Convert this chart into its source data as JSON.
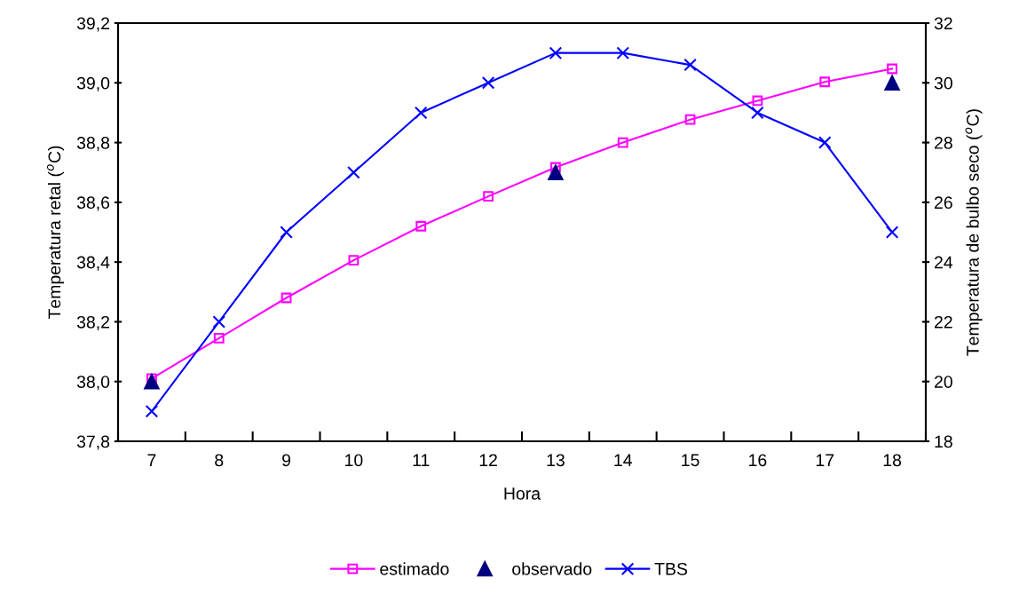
{
  "chart_data": {
    "type": "line",
    "xlabel": "Hora",
    "ylabel": "Temperatura retal ($^{o}$C)",
    "y2label": "Temperatura de bulbo seco ($^{o}$C)",
    "categories": [
      "7",
      "8",
      "9",
      "10",
      "11",
      "12",
      "13",
      "14",
      "15",
      "16",
      "17",
      "18"
    ],
    "series": [
      {
        "name": "estimado",
        "color": "#ff00ff",
        "marker": "square",
        "line_style": "solid",
        "values": [
          38.01,
          38.145,
          38.28,
          38.406,
          38.52,
          38.62,
          38.717,
          38.8,
          38.877,
          38.94,
          39.003,
          39.047
        ]
      },
      {
        "name": "observado",
        "type": "scatter",
        "color": "#000080",
        "marker": "triangle",
        "values": [
          38.0,
          null,
          null,
          null,
          null,
          null,
          38.7,
          null,
          null,
          null,
          null,
          39.0
        ]
      },
      {
        "name": "TBS",
        "color": "#0000ff",
        "marker": "cross",
        "line_style": "solid",
        "axis": "y2",
        "values": [
          19,
          22,
          25,
          27,
          29,
          30,
          31,
          31,
          30.6,
          29,
          28,
          25
        ]
      }
    ],
    "ylim": [
      37.8,
      39.2
    ],
    "yticks": [
      {
        "value": 37.8,
        "label": "37,8"
      },
      {
        "value": 38.0,
        "label": "38,0"
      },
      {
        "value": 38.2,
        "label": "38,2"
      },
      {
        "value": 38.4,
        "label": "38,4"
      },
      {
        "value": 38.6,
        "label": "38,6"
      },
      {
        "value": 38.8,
        "label": "38,8"
      },
      {
        "value": 39.0,
        "label": "39,0"
      },
      {
        "value": 39.2,
        "label": "39,2"
      }
    ],
    "y2lim": [
      18,
      32
    ],
    "y2ticks": [
      18,
      20,
      22,
      24,
      26,
      28,
      30,
      32
    ],
    "grid": false,
    "legend": "bottom"
  }
}
